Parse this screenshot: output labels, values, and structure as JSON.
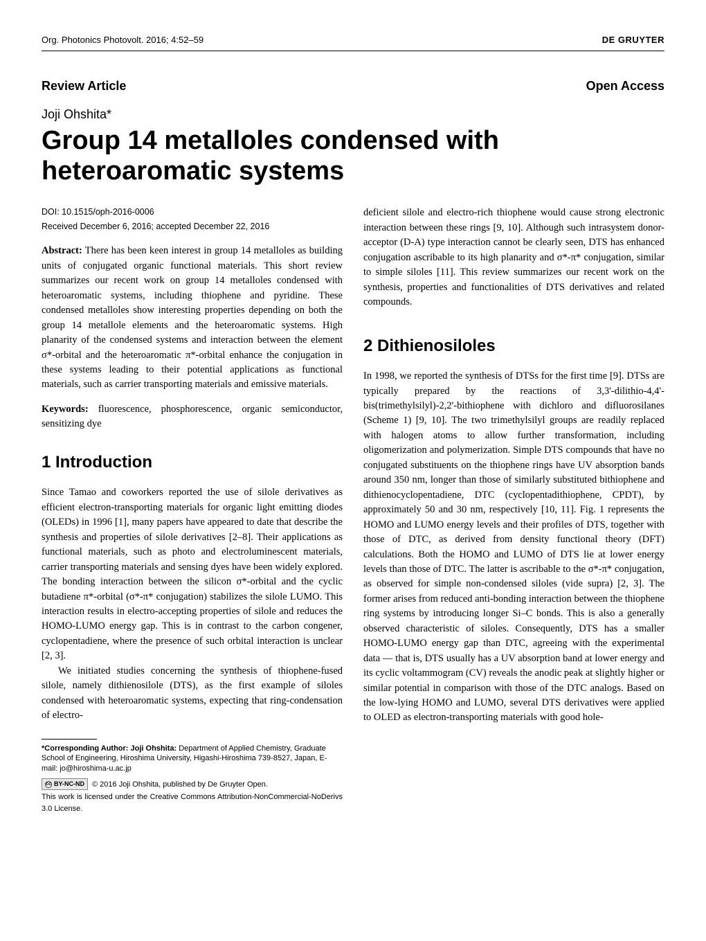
{
  "header": {
    "left": "Org. Photonics Photovolt. 2016; 4:52–59",
    "right": "DE GRUYTER"
  },
  "article_type": "Review Article",
  "access_type": "Open Access",
  "author": "Joji Ohshita*",
  "title": "Group 14 metalloles condensed with heteroaromatic systems",
  "doi": "DOI: 10.1515/oph-2016-0006",
  "received": "Received December 6, 2016; accepted December 22, 2016",
  "abstract_label": "Abstract:",
  "abstract_text": " There has been keen interest in group 14 metalloles as building units of conjugated organic functional materials. This short review summarizes our recent work on group 14 metalloles condensed with heteroaromatic systems, including thiophene and pyridine. These condensed metalloles show interesting properties depending on both the group 14 metallole elements and the heteroaromatic systems. High planarity of the condensed systems and interaction between the element σ*-orbital and the heteroaromatic π*-orbital enhance the conjugation in these systems leading to their potential applications as functional materials, such as carrier transporting materials and emissive materials.",
  "keywords_label": "Keywords:",
  "keywords_text": " fluorescence, phosphorescence, organic semiconductor, sensitizing dye",
  "section1_heading": "1 Introduction",
  "section1_p1": "Since Tamao and coworkers reported the use of silole derivatives as efficient electron-transporting materials for organic light emitting diodes (OLEDs) in 1996 [1], many papers have appeared to date that describe the synthesis and properties of silole derivatives [2–8]. Their applications as functional materials, such as photo and electroluminescent materials, carrier transporting materials and sensing dyes have been widely explored. The bonding interaction between the silicon σ*-orbital and the cyclic butadiene π*-orbital (σ*-π* conjugation) stabilizes the silole LUMO. This interaction results in electro-accepting properties of silole and reduces the HOMO-LUMO energy gap. This is in contrast to the carbon congener, cyclopentadiene, where the presence of such orbital interaction is unclear [2, 3].",
  "section1_p2": "We initiated studies concerning the synthesis of thiophene-fused silole, namely dithienosilole (DTS), as the first example of siloles condensed with heteroaromatic systems, expecting that ring-condensation of electro-",
  "right_col_p1": "deficient silole and electro-rich thiophene would cause strong electronic interaction between these rings [9, 10]. Although such intrasystem donor-acceptor (D-A) type interaction cannot be clearly seen, DTS has enhanced conjugation ascribable to its high planarity and σ*-π* conjugation, similar to simple siloles [11]. This review summarizes our recent work on the synthesis, properties and functionalities of DTS derivatives and related compounds.",
  "section2_heading": "2 Dithienosiloles",
  "section2_p1": "In 1998, we reported the synthesis of DTSs for the first time [9]. DTSs are typically prepared by the reactions of 3,3'-dilithio-4,4'-bis(trimethylsilyl)-2,2'-bithiophene with dichloro and difluorosilanes (Scheme 1) [9, 10]. The two trimethylsilyl groups are readily replaced with halogen atoms to allow further transformation, including oligomerization and polymerization. Simple DTS compounds that have no conjugated substituents on the thiophene rings have UV absorption bands around 350 nm, longer than those of similarly substituted bithiophene and dithienocyclopentadiene, DTC (cyclopentadithiophene, CPDT), by approximately 50 and 30 nm, respectively [10, 11]. Fig. 1 represents the HOMO and LUMO energy levels and their profiles of DTS, together with those of DTC, as derived from density functional theory (DFT) calculations. Both the HOMO and LUMO of DTS lie at lower energy levels than those of DTC. The latter is ascribable to the σ*-π* conjugation, as observed for simple non-condensed siloles (vide supra) [2, 3]. The former arises from reduced anti-bonding interaction between the thiophene ring systems by introducing longer Si–C bonds. This is also a generally observed characteristic of siloles. Consequently, DTS has a smaller HOMO-LUMO energy gap than DTC, agreeing with the experimental data — that is, DTS usually has a UV absorption band at lower energy and its cyclic voltammogram (CV) reveals the anodic peak at slightly higher or similar potential in comparison with those of the DTC analogs. Based on the low-lying HOMO and LUMO, several DTS derivatives were applied to OLED as electron-transporting materials with good hole-",
  "footnote_label": "*Corresponding Author: Joji Ohshita:",
  "footnote_text": " Department of Applied Chemistry, Graduate School of Engineering, Hiroshima University, Higashi-Hiroshima 739-8527, Japan, E-mail: jo@hiroshima-u.ac.jp",
  "cc_label": "BY-NC-ND",
  "license_text1": "© 2016 Joji Ohshita, published by De Gruyter Open.",
  "license_text2": "This work is licensed under the Creative Commons Attribution-NonCommercial-NoDerivs 3.0 License."
}
